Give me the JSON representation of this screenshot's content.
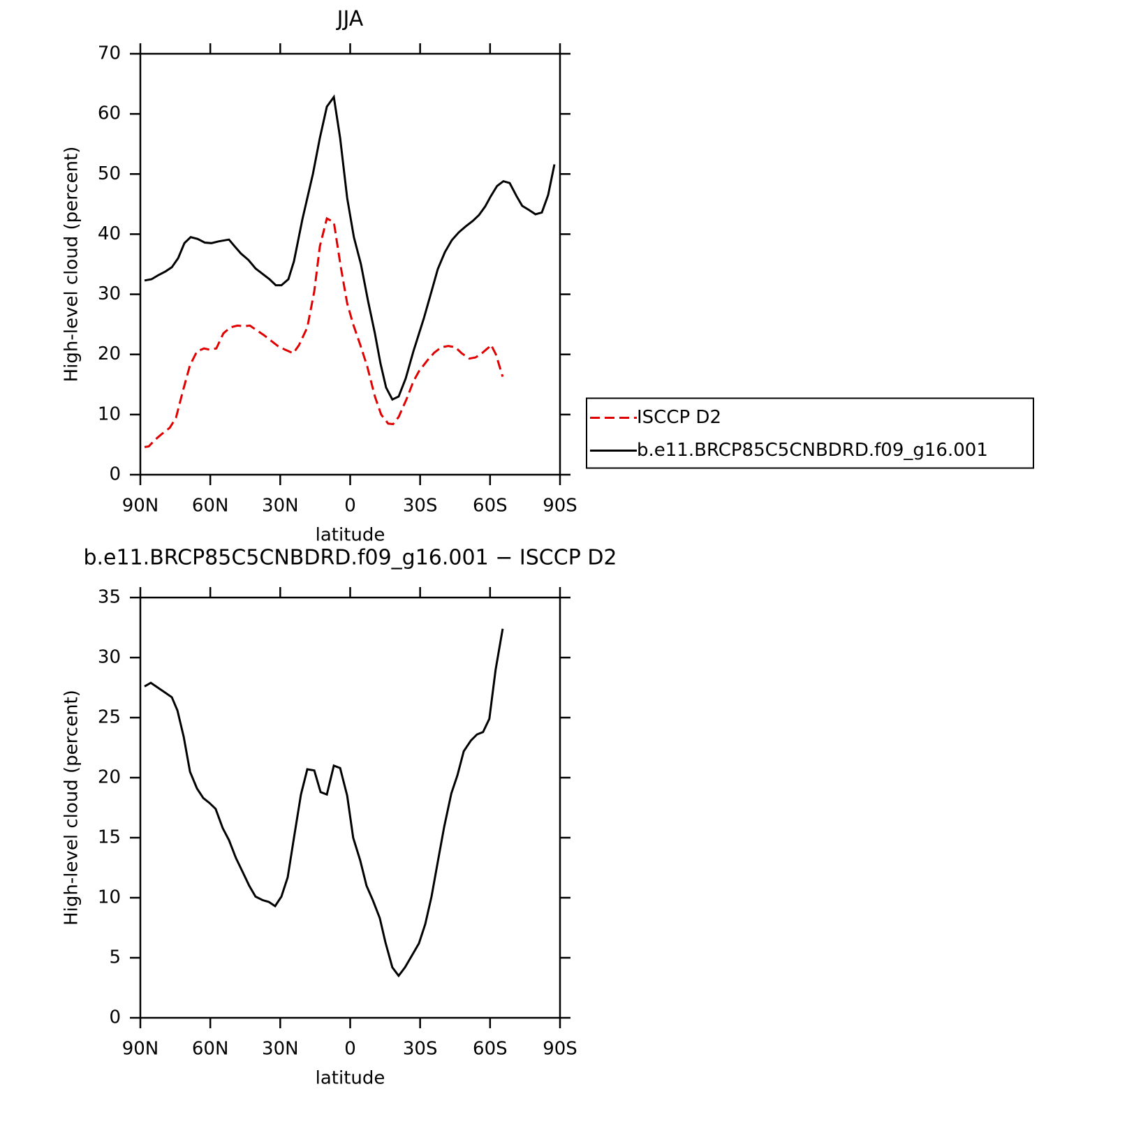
{
  "chart_data": [
    {
      "type": "line",
      "title": "JJA",
      "xlabel": "latitude",
      "ylabel": "High-level cloud (percent)",
      "xlim": [
        90,
        -90
      ],
      "xticks": [
        {
          "value": 90,
          "label": "90N"
        },
        {
          "value": 60,
          "label": "60N"
        },
        {
          "value": 30,
          "label": "30N"
        },
        0,
        {
          "value": -30,
          "label": "30S"
        },
        {
          "value": -60,
          "label": "60S"
        },
        {
          "value": -90,
          "label": "90S"
        }
      ],
      "ylim": [
        0,
        70
      ],
      "yticks": [
        0,
        10,
        20,
        30,
        40,
        50,
        60,
        70
      ],
      "legend": "right",
      "series": [
        {
          "name": "ISCCP D2",
          "color": "#e00000",
          "dash": "dashed",
          "x": [
            88.2,
            86.4,
            83.7,
            80.7,
            77.4,
            74.7,
            71.7,
            68.7,
            65.7,
            62.7,
            60.4,
            57.4,
            54.4,
            51.4,
            48.4,
            45.4,
            43.0,
            40.0,
            37.0,
            34.0,
            31.0,
            28.0,
            24.4,
            22.0,
            18.4,
            15.4,
            13.0,
            10.0,
            7.0,
            4.0,
            1.3,
            -1.3,
            -4.3,
            -7.3,
            -10.6,
            -13.3,
            -16.3,
            -18.4,
            -20.8,
            -24.1,
            -27.1,
            -29.5,
            -33.1,
            -36.1,
            -39.1,
            -42.1,
            -45.1,
            -47.8,
            -51.1,
            -53.8,
            -56.5,
            -59.5,
            -60.4,
            -62.5,
            -65.4
          ],
          "values": [
            4.6,
            4.7,
            5.8,
            6.8,
            7.8,
            9.5,
            14,
            18.2,
            20.5,
            21,
            20.8,
            21,
            23.5,
            24.5,
            24.8,
            24.7,
            24.8,
            24,
            23.2,
            22.3,
            21.4,
            20.8,
            20.2,
            21.5,
            24.5,
            30.5,
            38,
            42.6,
            42,
            34.5,
            28.5,
            25,
            21.6,
            18,
            13,
            10,
            8.5,
            8.4,
            9.6,
            12.5,
            15.5,
            17.2,
            19,
            20.3,
            21.2,
            21.4,
            21.2,
            20.2,
            19.3,
            19.5,
            20.2,
            21.2,
            21.6,
            20,
            16.3
          ]
        },
        {
          "name": "b.e11.BRCP85C5CNBDRD.f09_g16.001",
          "color": "#000000",
          "dash": "solid",
          "x": [
            88.2,
            85.2,
            82.2,
            79.2,
            76.5,
            73.8,
            71.1,
            68.4,
            65.4,
            62.4,
            59.5,
            56.5,
            52.0,
            49.6,
            46.9,
            43.6,
            40.6,
            37.6,
            34.6,
            31.9,
            29.5,
            26.5,
            24.1,
            20.5,
            16.0,
            13.0,
            10.0,
            7.0,
            4.3,
            1.3,
            -1.6,
            -4.6,
            -7.6,
            -10.6,
            -13.0,
            -15.4,
            -18.1,
            -20.8,
            -23.8,
            -27.1,
            -31.6,
            -34.9,
            -37.6,
            -40.6,
            -43.6,
            -46.6,
            -49.6,
            -52.6,
            -55.3,
            -57.9,
            -60.3,
            -63.0,
            -65.7,
            -68.4,
            -71.4,
            -73.8,
            -76.8,
            -79.5,
            -82.2,
            -84.9,
            -87.6
          ],
          "values": [
            32.3,
            32.5,
            33.2,
            33.8,
            34.5,
            36,
            38.5,
            39.5,
            39.2,
            38.6,
            38.5,
            38.8,
            39.1,
            38,
            36.8,
            35.7,
            34.3,
            33.4,
            32.5,
            31.5,
            31.5,
            32.5,
            35.5,
            42.5,
            50,
            56,
            61.2,
            62.8,
            56,
            46,
            39.5,
            35,
            29,
            23.5,
            18.5,
            14.5,
            12.5,
            13,
            16,
            20.5,
            26,
            30.5,
            34.2,
            37,
            39,
            40.3,
            41.3,
            42.2,
            43.2,
            44.6,
            46.3,
            48,
            48.8,
            48.5,
            46.3,
            44.7,
            44,
            43.3,
            43.6,
            46.5,
            51.6
          ]
        }
      ]
    },
    {
      "type": "line",
      "title": "b.e11.BRCP85C5CNBDRD.f09_g16.001 − ISCCP D2",
      "xlabel": "latitude",
      "ylabel": "High-level cloud (percent)",
      "xlim": [
        90,
        -90
      ],
      "xticks": [
        {
          "value": 90,
          "label": "90N"
        },
        {
          "value": 60,
          "label": "60N"
        },
        {
          "value": 30,
          "label": "30N"
        },
        0,
        {
          "value": -30,
          "label": "30S"
        },
        {
          "value": -60,
          "label": "60S"
        },
        {
          "value": -90,
          "label": "90S"
        }
      ],
      "ylim": [
        0,
        35
      ],
      "yticks": [
        0,
        5,
        10,
        15,
        20,
        25,
        30,
        35
      ],
      "series": [
        {
          "color": "#000000",
          "dash": "solid",
          "x": [
            88.2,
            85.5,
            82.5,
            79.5,
            76.5,
            74.1,
            71.4,
            68.7,
            65.7,
            63.0,
            60.4,
            57.7,
            54.7,
            52.0,
            49.0,
            46.0,
            43.3,
            40.6,
            37.6,
            34.9,
            32.2,
            29.5,
            26.8,
            24.1,
            21.1,
            18.4,
            15.4,
            12.7,
            10.0,
            7.0,
            4.3,
            1.3,
            -1.3,
            -4.3,
            -7.0,
            -9.7,
            -12.7,
            -15.1,
            -18.1,
            -20.8,
            -23.5,
            -26.5,
            -29.5,
            -32.2,
            -34.9,
            -37.6,
            -40.3,
            -43.4,
            -46.0,
            -48.7,
            -51.8,
            -54.4,
            -57.0,
            -59.7,
            -62.4,
            -65.4
          ],
          "values": [
            27.6,
            27.9,
            27.5,
            27.1,
            26.7,
            25.6,
            23.4,
            20.5,
            19.1,
            18.3,
            17.9,
            17.4,
            15.8,
            14.8,
            13.3,
            12.1,
            11.0,
            10.1,
            9.8,
            9.65,
            9.3,
            10.1,
            11.7,
            15.0,
            18.6,
            20.7,
            20.6,
            18.8,
            18.6,
            21.0,
            20.8,
            18.5,
            15.0,
            13.1,
            11.0,
            9.8,
            8.3,
            6.3,
            4.2,
            3.5,
            4.2,
            5.2,
            6.2,
            7.8,
            10.1,
            13.0,
            15.9,
            18.7,
            20.2,
            22.2,
            23.1,
            23.6,
            23.8,
            24.9,
            29.0,
            32.4
          ]
        }
      ]
    }
  ]
}
